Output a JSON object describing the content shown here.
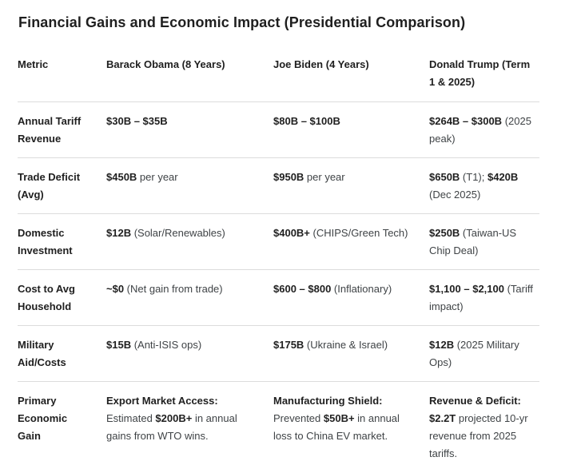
{
  "page": {
    "title": "Financial Gains and Economic Impact (Presidential Comparison)"
  },
  "table": {
    "columns": [
      "Metric",
      "Barack Obama (8 Years)",
      "Joe Biden (4 Years)",
      "Donald Trump (Term 1 & 2025)"
    ],
    "rows": [
      {
        "metric": "Annual Tariff Revenue",
        "obama": [
          {
            "t": "$30B – $35B",
            "b": true
          }
        ],
        "biden": [
          {
            "t": "$80B – $100B",
            "b": true
          }
        ],
        "trump": [
          {
            "t": "$264B – $300B",
            "b": true
          },
          {
            "t": " (2025 peak)"
          }
        ]
      },
      {
        "metric": "Trade Deficit (Avg)",
        "obama": [
          {
            "t": "$450B",
            "b": true
          },
          {
            "t": " per year"
          }
        ],
        "biden": [
          {
            "t": "$950B",
            "b": true
          },
          {
            "t": " per year"
          }
        ],
        "trump": [
          {
            "t": "$650B",
            "b": true
          },
          {
            "t": " (T1); "
          },
          {
            "t": "$420B",
            "b": true
          },
          {
            "t": " (Dec 2025)"
          }
        ]
      },
      {
        "metric": "Domestic Investment",
        "obama": [
          {
            "t": "$12B",
            "b": true
          },
          {
            "t": " (Solar/Renewables)"
          }
        ],
        "biden": [
          {
            "t": "$400B+",
            "b": true
          },
          {
            "t": " (CHIPS/Green Tech)"
          }
        ],
        "trump": [
          {
            "t": "$250B",
            "b": true
          },
          {
            "t": " (Taiwan-US Chip Deal)"
          }
        ]
      },
      {
        "metric": "Cost to Avg Household",
        "obama": [
          {
            "t": "~$0",
            "b": true
          },
          {
            "t": " (Net gain from trade)"
          }
        ],
        "biden": [
          {
            "t": "$600 – $800",
            "b": true
          },
          {
            "t": " (Inflationary)"
          }
        ],
        "trump": [
          {
            "t": "$1,100 – $2,100",
            "b": true
          },
          {
            "t": " (Tariff impact)"
          }
        ]
      },
      {
        "metric": "Military Aid/Costs",
        "obama": [
          {
            "t": "$15B",
            "b": true
          },
          {
            "t": " (Anti-ISIS ops)"
          }
        ],
        "biden": [
          {
            "t": "$175B",
            "b": true
          },
          {
            "t": " (Ukraine & Israel)"
          }
        ],
        "trump": [
          {
            "t": "$12B",
            "b": true
          },
          {
            "t": " (2025 Military Ops)"
          }
        ]
      },
      {
        "metric": "Primary Economic Gain",
        "obama": [
          {
            "t": "Export Market Access:",
            "b": true
          },
          {
            "t": " Estimated "
          },
          {
            "t": "$200B+",
            "b": true
          },
          {
            "t": " in annual gains from WTO wins."
          }
        ],
        "biden": [
          {
            "t": "Manufacturing Shield:",
            "b": true
          },
          {
            "t": " Prevented "
          },
          {
            "t": "$50B+",
            "b": true
          },
          {
            "t": " in annual loss to China EV market."
          }
        ],
        "trump": [
          {
            "t": "Revenue & Deficit:",
            "b": true
          },
          {
            "t": " "
          },
          {
            "t": "$2.2T",
            "b": true
          },
          {
            "t": " projected 10-yr revenue from 2025 tariffs."
          }
        ]
      }
    ]
  }
}
